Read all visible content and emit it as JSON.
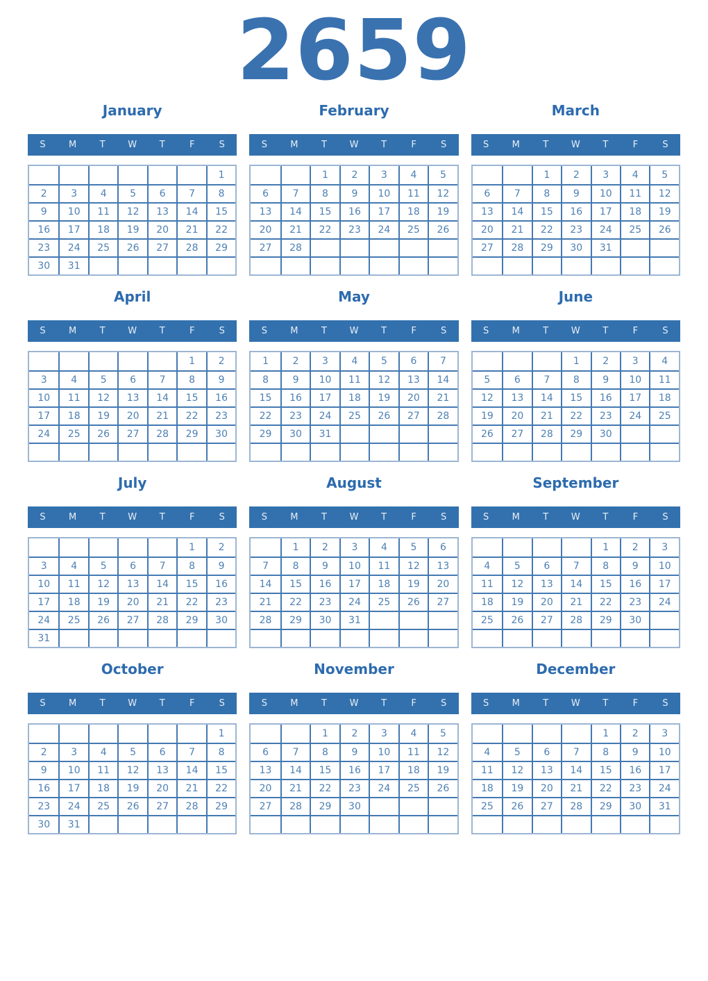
{
  "page_title": "2659",
  "weekday_labels": [
    "S",
    "M",
    "T",
    "W",
    "T",
    "F",
    "S"
  ],
  "months": [
    {
      "name": "January",
      "weeks": [
        [
          "",
          "",
          "",
          "",
          "",
          "",
          "1"
        ],
        [
          "2",
          "3",
          "4",
          "5",
          "6",
          "7",
          "8"
        ],
        [
          "9",
          "10",
          "11",
          "12",
          "13",
          "14",
          "15"
        ],
        [
          "16",
          "17",
          "18",
          "19",
          "20",
          "21",
          "22"
        ],
        [
          "23",
          "24",
          "25",
          "26",
          "27",
          "28",
          "29"
        ],
        [
          "30",
          "31",
          "",
          "",
          "",
          "",
          ""
        ]
      ]
    },
    {
      "name": "February",
      "weeks": [
        [
          "",
          "",
          "1",
          "2",
          "3",
          "4",
          "5"
        ],
        [
          "6",
          "7",
          "8",
          "9",
          "10",
          "11",
          "12"
        ],
        [
          "13",
          "14",
          "15",
          "16",
          "17",
          "18",
          "19"
        ],
        [
          "20",
          "21",
          "22",
          "23",
          "24",
          "25",
          "26"
        ],
        [
          "27",
          "28",
          "",
          "",
          "",
          "",
          ""
        ],
        [
          "",
          "",
          "",
          "",
          "",
          "",
          ""
        ]
      ]
    },
    {
      "name": "March",
      "weeks": [
        [
          "",
          "",
          "1",
          "2",
          "3",
          "4",
          "5"
        ],
        [
          "6",
          "7",
          "8",
          "9",
          "10",
          "11",
          "12"
        ],
        [
          "13",
          "14",
          "15",
          "16",
          "17",
          "18",
          "19"
        ],
        [
          "20",
          "21",
          "22",
          "23",
          "24",
          "25",
          "26"
        ],
        [
          "27",
          "28",
          "29",
          "30",
          "31",
          "",
          ""
        ],
        [
          "",
          "",
          "",
          "",
          "",
          "",
          ""
        ]
      ]
    },
    {
      "name": "April",
      "weeks": [
        [
          "",
          "",
          "",
          "",
          "",
          "1",
          "2"
        ],
        [
          "3",
          "4",
          "5",
          "6",
          "7",
          "8",
          "9"
        ],
        [
          "10",
          "11",
          "12",
          "13",
          "14",
          "15",
          "16"
        ],
        [
          "17",
          "18",
          "19",
          "20",
          "21",
          "22",
          "23"
        ],
        [
          "24",
          "25",
          "26",
          "27",
          "28",
          "29",
          "30"
        ],
        [
          "",
          "",
          "",
          "",
          "",
          "",
          ""
        ]
      ]
    },
    {
      "name": "May",
      "weeks": [
        [
          "1",
          "2",
          "3",
          "4",
          "5",
          "6",
          "7"
        ],
        [
          "8",
          "9",
          "10",
          "11",
          "12",
          "13",
          "14"
        ],
        [
          "15",
          "16",
          "17",
          "18",
          "19",
          "20",
          "21"
        ],
        [
          "22",
          "23",
          "24",
          "25",
          "26",
          "27",
          "28"
        ],
        [
          "29",
          "30",
          "31",
          "",
          "",
          "",
          ""
        ],
        [
          "",
          "",
          "",
          "",
          "",
          "",
          ""
        ]
      ]
    },
    {
      "name": "June",
      "weeks": [
        [
          "",
          "",
          "",
          "1",
          "2",
          "3",
          "4"
        ],
        [
          "5",
          "6",
          "7",
          "8",
          "9",
          "10",
          "11"
        ],
        [
          "12",
          "13",
          "14",
          "15",
          "16",
          "17",
          "18"
        ],
        [
          "19",
          "20",
          "21",
          "22",
          "23",
          "24",
          "25"
        ],
        [
          "26",
          "27",
          "28",
          "29",
          "30",
          "",
          ""
        ],
        [
          "",
          "",
          "",
          "",
          "",
          "",
          ""
        ]
      ]
    },
    {
      "name": "July",
      "weeks": [
        [
          "",
          "",
          "",
          "",
          "",
          "1",
          "2"
        ],
        [
          "3",
          "4",
          "5",
          "6",
          "7",
          "8",
          "9"
        ],
        [
          "10",
          "11",
          "12",
          "13",
          "14",
          "15",
          "16"
        ],
        [
          "17",
          "18",
          "19",
          "20",
          "21",
          "22",
          "23"
        ],
        [
          "24",
          "25",
          "26",
          "27",
          "28",
          "29",
          "30"
        ],
        [
          "31",
          "",
          "",
          "",
          "",
          "",
          ""
        ]
      ]
    },
    {
      "name": "August",
      "weeks": [
        [
          "",
          "1",
          "2",
          "3",
          "4",
          "5",
          "6"
        ],
        [
          "7",
          "8",
          "9",
          "10",
          "11",
          "12",
          "13"
        ],
        [
          "14",
          "15",
          "16",
          "17",
          "18",
          "19",
          "20"
        ],
        [
          "21",
          "22",
          "23",
          "24",
          "25",
          "26",
          "27"
        ],
        [
          "28",
          "29",
          "30",
          "31",
          "",
          "",
          ""
        ],
        [
          "",
          "",
          "",
          "",
          "",
          "",
          ""
        ]
      ]
    },
    {
      "name": "September",
      "weeks": [
        [
          "",
          "",
          "",
          "",
          "1",
          "2",
          "3"
        ],
        [
          "4",
          "5",
          "6",
          "7",
          "8",
          "9",
          "10"
        ],
        [
          "11",
          "12",
          "13",
          "14",
          "15",
          "16",
          "17"
        ],
        [
          "18",
          "19",
          "20",
          "21",
          "22",
          "23",
          "24"
        ],
        [
          "25",
          "26",
          "27",
          "28",
          "29",
          "30",
          ""
        ],
        [
          "",
          "",
          "",
          "",
          "",
          "",
          ""
        ]
      ]
    },
    {
      "name": "October",
      "weeks": [
        [
          "",
          "",
          "",
          "",
          "",
          "",
          "1"
        ],
        [
          "2",
          "3",
          "4",
          "5",
          "6",
          "7",
          "8"
        ],
        [
          "9",
          "10",
          "11",
          "12",
          "13",
          "14",
          "15"
        ],
        [
          "16",
          "17",
          "18",
          "19",
          "20",
          "21",
          "22"
        ],
        [
          "23",
          "24",
          "25",
          "26",
          "27",
          "28",
          "29"
        ],
        [
          "30",
          "31",
          "",
          "",
          "",
          "",
          ""
        ]
      ]
    },
    {
      "name": "November",
      "weeks": [
        [
          "",
          "",
          "1",
          "2",
          "3",
          "4",
          "5"
        ],
        [
          "6",
          "7",
          "8",
          "9",
          "10",
          "11",
          "12"
        ],
        [
          "13",
          "14",
          "15",
          "16",
          "17",
          "18",
          "19"
        ],
        [
          "20",
          "21",
          "22",
          "23",
          "24",
          "25",
          "26"
        ],
        [
          "27",
          "28",
          "29",
          "30",
          "",
          "",
          ""
        ],
        [
          "",
          "",
          "",
          "",
          "",
          "",
          ""
        ]
      ]
    },
    {
      "name": "December",
      "weeks": [
        [
          "",
          "",
          "",
          "",
          "1",
          "2",
          "3"
        ],
        [
          "4",
          "5",
          "6",
          "7",
          "8",
          "9",
          "10"
        ],
        [
          "11",
          "12",
          "13",
          "14",
          "15",
          "16",
          "17"
        ],
        [
          "18",
          "19",
          "20",
          "21",
          "22",
          "23",
          "24"
        ],
        [
          "25",
          "26",
          "27",
          "28",
          "29",
          "30",
          "31"
        ],
        [
          "",
          "",
          "",
          "",
          "",
          "",
          ""
        ]
      ]
    }
  ],
  "colors": {
    "year_title_color": "#3a72b0",
    "month_title_color": "#2d6bae",
    "weekday_bar_bg": "#3371ae",
    "weekday_text": "#e9eff6",
    "grid_inner_border": "#4379b2",
    "grid_outer_border": "#9cb6d3",
    "day_text": "#4d80b4",
    "page_bg": "#ffffff"
  }
}
